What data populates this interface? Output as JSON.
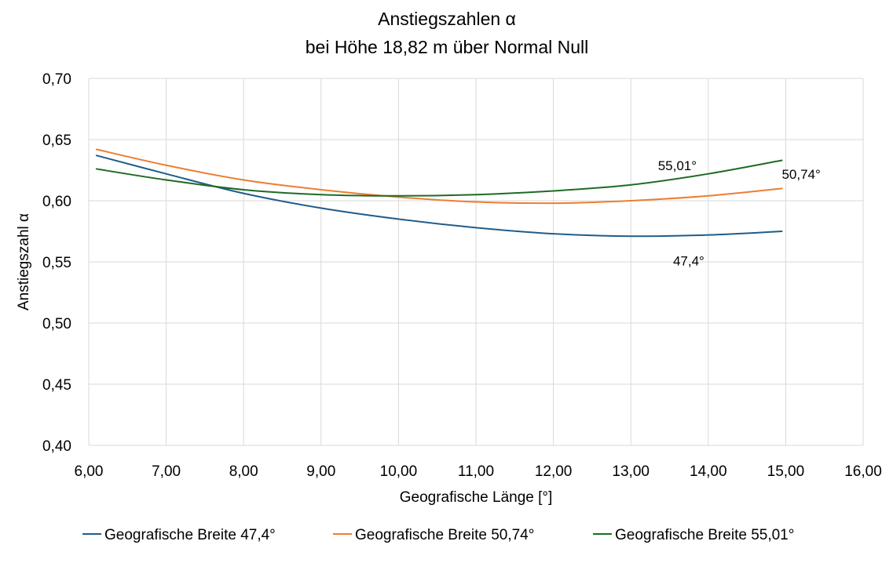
{
  "chart_data": {
    "type": "line",
    "title": [
      "Anstiegszahlen α",
      "bei Höhe 18,82 m über Normal Null"
    ],
    "xlabel": "Geografische Länge [°]",
    "ylabel": "Anstiegszahl α",
    "xlim": [
      6,
      16
    ],
    "ylim": [
      0.4,
      0.7
    ],
    "x_ticks": [
      6,
      7,
      8,
      9,
      10,
      11,
      12,
      13,
      14,
      15,
      16
    ],
    "x_tick_labels": [
      "6,00",
      "7,00",
      "8,00",
      "9,00",
      "10,00",
      "11,00",
      "12,00",
      "13,00",
      "14,00",
      "15,00",
      "16,00"
    ],
    "y_ticks": [
      0.4,
      0.45,
      0.5,
      0.55,
      0.6,
      0.65,
      0.7
    ],
    "y_tick_labels": [
      "0,40",
      "0,45",
      "0,50",
      "0,55",
      "0,60",
      "0,65",
      "0,70"
    ],
    "grid": true,
    "legend_position": "bottom",
    "x": [
      6.1,
      7.0,
      8.0,
      9.0,
      10.0,
      11.0,
      12.0,
      13.0,
      14.0,
      14.95
    ],
    "series": [
      {
        "name": "Geografische Breite 47,4°",
        "color": "#1f5c8b",
        "values": [
          0.637,
          0.622,
          0.606,
          0.594,
          0.585,
          0.578,
          0.573,
          0.571,
          0.572,
          0.575
        ],
        "annotation": "47,4°"
      },
      {
        "name": "Geografische Breite 50,74°",
        "color": "#ed7d31",
        "values": [
          0.642,
          0.629,
          0.617,
          0.609,
          0.603,
          0.599,
          0.598,
          0.6,
          0.604,
          0.61
        ],
        "annotation": "50,74°"
      },
      {
        "name": "Geografische Breite 55,01°",
        "color": "#1e6b23",
        "values": [
          0.626,
          0.617,
          0.609,
          0.605,
          0.604,
          0.605,
          0.608,
          0.613,
          0.622,
          0.633
        ],
        "annotation": "55,01°"
      }
    ]
  }
}
